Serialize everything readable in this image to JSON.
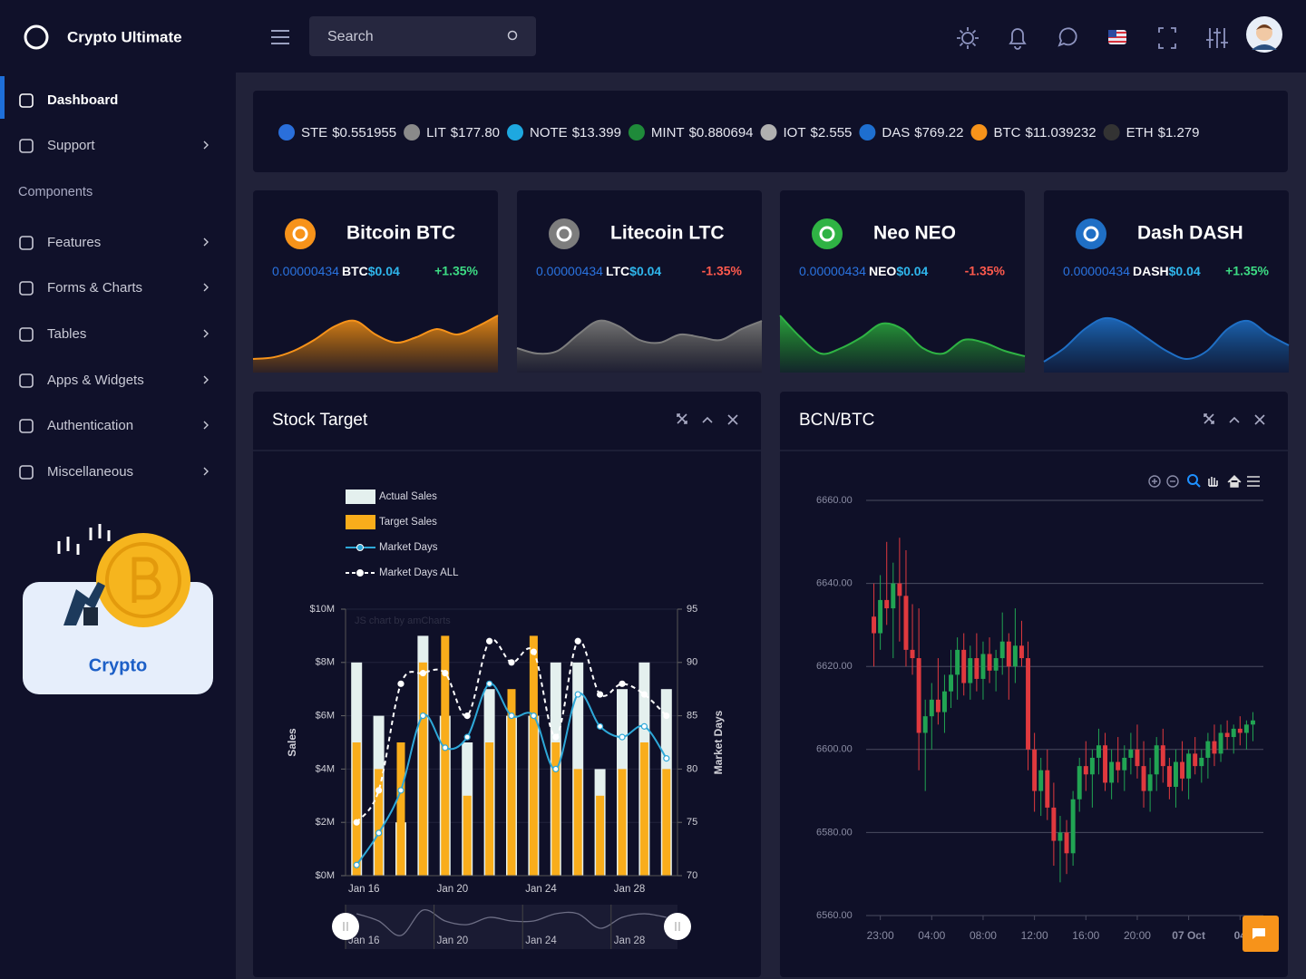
{
  "header": {
    "brand": "Crypto Ultimate",
    "search": "Search"
  },
  "nav": [
    {
      "label": "Dashboard",
      "active": true
    },
    {
      "label": "Support",
      "arrow": true
    },
    {
      "label": "Components",
      "section": true
    },
    {
      "label": "Features",
      "arrow": true
    },
    {
      "label": "Forms & Charts",
      "arrow": true
    },
    {
      "label": "Tables",
      "arrow": true
    },
    {
      "label": "Apps & Widgets",
      "arrow": true
    },
    {
      "label": "Authentication",
      "arrow": true
    },
    {
      "label": "Miscellaneous",
      "arrow": true
    }
  ],
  "promo": {
    "label": "Crypto"
  },
  "ticker": [
    {
      "symbol": "STE",
      "price": "$0.551955",
      "color": "#2a6fdb"
    },
    {
      "symbol": "LIT",
      "price": "$177.80",
      "color": "#8a8a8a"
    },
    {
      "symbol": "NOTE",
      "price": "$13.399",
      "color": "#1ea8e0"
    },
    {
      "symbol": "MINT",
      "price": "$0.880694",
      "color": "#1f8a3a"
    },
    {
      "symbol": "IOT",
      "price": "$2.555",
      "color": "#b0b0b0"
    },
    {
      "symbol": "DAS",
      "price": "$769.22",
      "color": "#1e6fd0"
    },
    {
      "symbol": "BTC",
      "price": "$11.039232",
      "color": "#f7931a"
    },
    {
      "symbol": "ETH",
      "price": "$1.279",
      "color": "#333333"
    }
  ],
  "coins": [
    {
      "name": "Bitcoin BTC",
      "amount": "0.00000434",
      "unit": "BTC",
      "price": "$0.04",
      "change": "+1.35%",
      "color": "#f7931a",
      "spark": [
        15,
        18,
        30,
        50,
        75,
        85,
        60,
        45,
        55,
        70,
        60,
        75,
        95
      ]
    },
    {
      "name": "Litecoin LTC",
      "amount": "0.00000434",
      "unit": "LTC",
      "price": "$0.04",
      "change": "-1.35%",
      "color": "#7d7d7d",
      "spark": [
        35,
        25,
        30,
        60,
        85,
        75,
        50,
        45,
        60,
        55,
        50,
        70,
        85
      ]
    },
    {
      "name": "Neo NEO",
      "amount": "0.00000434",
      "unit": "NEO",
      "price": "$0.04",
      "change": "-1.35%",
      "color": "#2fb344",
      "spark": [
        95,
        55,
        25,
        35,
        55,
        80,
        70,
        35,
        25,
        50,
        45,
        30,
        20
      ]
    },
    {
      "name": "Dash DASH",
      "amount": "0.00000434",
      "unit": "DASH",
      "price": "$0.04",
      "change": "+1.35%",
      "color": "#1f6fc5",
      "spark": [
        10,
        35,
        70,
        90,
        80,
        55,
        30,
        15,
        30,
        70,
        85,
        60,
        40
      ]
    }
  ],
  "chart_data": [
    {
      "type": "bar-line",
      "title": "Stock Target",
      "categories": [
        "Jan 16",
        null,
        null,
        null,
        "Jan 20",
        null,
        null,
        null,
        "Jan 24",
        null,
        null,
        null,
        "Jan 28",
        null,
        null
      ],
      "series": [
        {
          "name": "Actual Sales",
          "type": "bar",
          "color": "#e4f0ee",
          "values": [
            8000000,
            6000000,
            2000000,
            9000000,
            6000000,
            5000000,
            7000000,
            6000000,
            6000000,
            8000000,
            8000000,
            4000000,
            7000000,
            8000000,
            7000000
          ]
        },
        {
          "name": "Target Sales",
          "type": "bar",
          "color": "#f9ad1b",
          "values": [
            5000000,
            4000000,
            5000000,
            8000000,
            9000000,
            3000000,
            5000000,
            7000000,
            9000000,
            5000000,
            4000000,
            3000000,
            4000000,
            5000000,
            4000000
          ]
        },
        {
          "name": "Market Days",
          "type": "line",
          "axis": "y2",
          "color": "#2ea8d8",
          "values": [
            71,
            74,
            78,
            85,
            82,
            83,
            88,
            85,
            85,
            80,
            87,
            84,
            83,
            84,
            81
          ]
        },
        {
          "name": "Market Days ALL",
          "type": "line",
          "axis": "y2",
          "dashed": true,
          "color": "#ffffff",
          "values": [
            75,
            78,
            88,
            89,
            89,
            85,
            92,
            90,
            91,
            83,
            92,
            87,
            88,
            87,
            85
          ]
        }
      ],
      "ylabel": "Sales",
      "y2label": "Market Days",
      "ylim": [
        0,
        10000000
      ],
      "yticks": [
        {
          "value": 0,
          "label": "$0M"
        },
        {
          "value": 2000000,
          "label": "$2M"
        },
        {
          "value": 4000000,
          "label": "$4M"
        },
        {
          "value": 6000000,
          "label": "$6M"
        },
        {
          "value": 8000000,
          "label": "$8M"
        },
        {
          "value": 10000000,
          "label": "$10M"
        }
      ],
      "y2lim": [
        70,
        95
      ],
      "y2ticks": [
        70,
        75,
        80,
        85,
        90,
        95
      ],
      "credit": "JS chart by amCharts",
      "grid": true
    },
    {
      "type": "candlestick",
      "title": "BCN/BTC",
      "categories": [
        null,
        "23:00",
        null,
        null,
        null,
        null,
        null,
        null,
        null,
        "04:00",
        null,
        null,
        null,
        null,
        null,
        null,
        null,
        "08:00",
        null,
        null,
        null,
        null,
        null,
        null,
        null,
        "12:00",
        null,
        null,
        null,
        null,
        null,
        null,
        null,
        "16:00",
        null,
        null,
        null,
        null,
        null,
        null,
        null,
        "20:00",
        null,
        null,
        null,
        null,
        null,
        null,
        null,
        "07 Oct",
        null,
        null,
        null,
        null,
        null,
        null,
        null,
        "04",
        null,
        null
      ],
      "open": [
        6632,
        6628,
        6636,
        6634,
        6640,
        6637,
        6624,
        6622,
        6604,
        6608,
        6612,
        6609,
        6614,
        6618,
        6624,
        6616,
        6622,
        6617,
        6623,
        6619,
        6622,
        6626,
        6620,
        6625,
        6622,
        6600,
        6590,
        6595,
        6586,
        6578,
        6580,
        6575,
        6588,
        6596,
        6594,
        6598,
        6601,
        6592,
        6597,
        6595,
        6598,
        6600,
        6596,
        6590,
        6594,
        6601,
        6596,
        6591,
        6597,
        6593,
        6599,
        6596,
        6598,
        6602,
        6599,
        6604,
        6603,
        6605,
        6604,
        6606
      ],
      "high": [
        6640,
        6642,
        6650,
        6645,
        6651,
        6648,
        6635,
        6634,
        6612,
        6616,
        6622,
        6618,
        6624,
        6627,
        6628,
        6625,
        6628,
        6626,
        6627,
        6624,
        6633,
        6628,
        6634,
        6631,
        6626,
        6604,
        6598,
        6600,
        6592,
        6584,
        6583,
        6590,
        6598,
        6602,
        6600,
        6605,
        6604,
        6600,
        6603,
        6601,
        6604,
        6606,
        6602,
        6598,
        6603,
        6605,
        6598,
        6600,
        6602,
        6600,
        6603,
        6600,
        6604,
        6606,
        6606,
        6607,
        6606,
        6608,
        6607,
        6609
      ],
      "low": [
        6620,
        6624,
        6630,
        6622,
        6626,
        6620,
        6618,
        6595,
        6590,
        6600,
        6606,
        6604,
        6610,
        6612,
        6613,
        6612,
        6614,
        6612,
        6616,
        6614,
        6618,
        6612,
        6616,
        6620,
        6595,
        6585,
        6584,
        6583,
        6572,
        6568,
        6570,
        6572,
        6585,
        6590,
        6586,
        6594,
        6590,
        6588,
        6592,
        6590,
        6594,
        6593,
        6586,
        6585,
        6590,
        6592,
        6588,
        6586,
        6590,
        6588,
        6594,
        6592,
        6593,
        6596,
        6597,
        6600,
        6599,
        6601,
        6600,
        6602
      ],
      "close": [
        6628,
        6636,
        6634,
        6640,
        6637,
        6624,
        6622,
        6604,
        6608,
        6612,
        6609,
        6614,
        6618,
        6624,
        6616,
        6622,
        6617,
        6623,
        6619,
        6622,
        6626,
        6620,
        6625,
        6622,
        6600,
        6590,
        6595,
        6586,
        6578,
        6580,
        6575,
        6588,
        6596,
        6594,
        6598,
        6601,
        6592,
        6597,
        6595,
        6598,
        6600,
        6596,
        6590,
        6594,
        6601,
        6596,
        6591,
        6597,
        6593,
        6599,
        6596,
        6598,
        6602,
        6599,
        6604,
        6603,
        6605,
        6604,
        6606,
        6607
      ],
      "up_color": "#21a453",
      "down_color": "#e0393e",
      "ylim": [
        6560,
        6660
      ],
      "yticks": [
        {
          "value": 6560,
          "label": "6560.00"
        },
        {
          "value": 6580,
          "label": "6580.00"
        },
        {
          "value": 6600,
          "label": "6600.00"
        },
        {
          "value": 6620,
          "label": "6620.00"
        },
        {
          "value": 6640,
          "label": "6640.00"
        },
        {
          "value": 6660,
          "label": "6660.00"
        }
      ],
      "grid": true
    }
  ]
}
